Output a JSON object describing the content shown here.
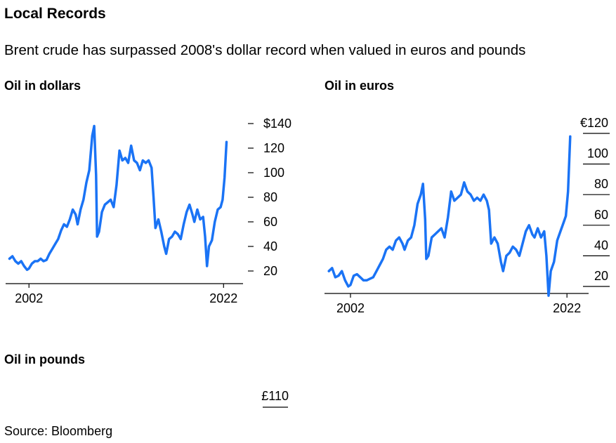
{
  "header": {
    "title": "Local Records",
    "subtitle": "Brent crude has surpassed 2008's dollar record when valued in euros and pounds"
  },
  "footer": {
    "source": "Source: Bloomberg"
  },
  "colors": {
    "line": "#1a73f5",
    "axis": "#000000"
  },
  "chart_data": [
    {
      "type": "line",
      "title": "Oil in dollars",
      "xlabel": "",
      "ylabel": "",
      "xlim": [
        1999.6,
        2024.0
      ],
      "ylim": [
        13,
        143
      ],
      "x_ticks": [
        2002,
        2022
      ],
      "x_tick_labels": [
        "2002",
        "2022"
      ],
      "y_ticks": [
        20,
        40,
        60,
        80,
        100,
        120,
        140
      ],
      "y_tick_labels": [
        "20",
        "40",
        "60",
        "80",
        "100",
        "120",
        "$140"
      ],
      "y_axis_side": "right",
      "grid": false,
      "series": [
        {
          "x": [
            2000.0,
            2000.3,
            2000.6,
            2000.9,
            2001.2,
            2001.5,
            2001.8,
            2002.0,
            2002.3,
            2002.6,
            2002.9,
            2003.2,
            2003.5,
            2003.8,
            2004.1,
            2004.4,
            2004.7,
            2005.0,
            2005.3,
            2005.6,
            2005.9,
            2006.2,
            2006.5,
            2006.8,
            2007.0,
            2007.3,
            2007.6,
            2007.9,
            2008.2,
            2008.5,
            2008.7,
            2008.9,
            2009.0,
            2009.2,
            2009.5,
            2009.8,
            2010.1,
            2010.4,
            2010.7,
            2011.0,
            2011.3,
            2011.6,
            2011.9,
            2012.2,
            2012.5,
            2012.8,
            2013.1,
            2013.4,
            2013.7,
            2014.0,
            2014.3,
            2014.6,
            2014.8,
            2015.0,
            2015.3,
            2015.6,
            2015.9,
            2016.1,
            2016.4,
            2016.7,
            2017.0,
            2017.3,
            2017.6,
            2017.9,
            2018.2,
            2018.5,
            2018.8,
            2019.0,
            2019.3,
            2019.6,
            2019.9,
            2020.1,
            2020.3,
            2020.5,
            2020.8,
            2021.1,
            2021.4,
            2021.7,
            2021.9,
            2022.1,
            2022.3
          ],
          "y": [
            30,
            32,
            28,
            26,
            28,
            24,
            21,
            22,
            26,
            28,
            28,
            30,
            28,
            29,
            34,
            38,
            42,
            46,
            53,
            58,
            56,
            62,
            70,
            66,
            58,
            70,
            78,
            92,
            102,
            130,
            138,
            98,
            48,
            52,
            68,
            74,
            76,
            78,
            72,
            90,
            118,
            110,
            112,
            108,
            122,
            110,
            108,
            102,
            110,
            108,
            110,
            104,
            80,
            55,
            62,
            52,
            40,
            34,
            46,
            48,
            52,
            50,
            46,
            58,
            68,
            74,
            66,
            60,
            70,
            62,
            64,
            48,
            24,
            40,
            45,
            60,
            70,
            72,
            78,
            96,
            125
          ]
        }
      ]
    },
    {
      "type": "line",
      "title": "Oil in euros",
      "xlabel": "",
      "ylabel": "",
      "xlim": [
        1999.6,
        2024.0
      ],
      "ylim": [
        10,
        128
      ],
      "x_ticks": [
        2002,
        2022
      ],
      "x_tick_labels": [
        "2002",
        "2022"
      ],
      "y_ticks": [
        20,
        40,
        60,
        80,
        100,
        120
      ],
      "y_tick_labels": [
        "20",
        "40",
        "60",
        "80",
        "100",
        "€120"
      ],
      "y_axis_side": "right",
      "grid": false,
      "series": [
        {
          "x": [
            2000.0,
            2000.3,
            2000.6,
            2000.9,
            2001.2,
            2001.5,
            2001.8,
            2002.0,
            2002.3,
            2002.6,
            2002.9,
            2003.2,
            2003.5,
            2003.8,
            2004.1,
            2004.4,
            2004.7,
            2005.0,
            2005.3,
            2005.6,
            2005.9,
            2006.2,
            2006.5,
            2006.8,
            2007.0,
            2007.3,
            2007.6,
            2007.9,
            2008.2,
            2008.5,
            2008.7,
            2008.9,
            2009.0,
            2009.2,
            2009.5,
            2009.8,
            2010.1,
            2010.4,
            2010.7,
            2011.0,
            2011.3,
            2011.6,
            2011.9,
            2012.2,
            2012.5,
            2012.8,
            2013.1,
            2013.4,
            2013.7,
            2014.0,
            2014.3,
            2014.6,
            2014.8,
            2015.0,
            2015.3,
            2015.6,
            2015.9,
            2016.1,
            2016.4,
            2016.7,
            2017.0,
            2017.3,
            2017.6,
            2017.9,
            2018.2,
            2018.5,
            2018.8,
            2019.0,
            2019.3,
            2019.6,
            2019.9,
            2020.1,
            2020.3,
            2020.5,
            2020.8,
            2021.1,
            2021.4,
            2021.7,
            2021.9,
            2022.1,
            2022.3
          ],
          "y": [
            30,
            32,
            26,
            27,
            30,
            24,
            20,
            21,
            27,
            28,
            26,
            24,
            24,
            25,
            26,
            30,
            34,
            38,
            44,
            46,
            44,
            50,
            52,
            48,
            44,
            50,
            52,
            60,
            74,
            80,
            87,
            64,
            38,
            40,
            52,
            54,
            56,
            58,
            52,
            65,
            82,
            76,
            78,
            80,
            88,
            82,
            80,
            76,
            78,
            76,
            80,
            76,
            70,
            48,
            52,
            48,
            36,
            30,
            40,
            42,
            46,
            44,
            40,
            48,
            56,
            60,
            54,
            52,
            58,
            52,
            56,
            40,
            14,
            30,
            36,
            50,
            56,
            62,
            66,
            82,
            118
          ]
        }
      ]
    },
    {
      "type": "line",
      "title": "Oil in pounds",
      "xlabel": "",
      "ylabel": "",
      "y_ticks": [
        110
      ],
      "y_tick_labels": [
        "£110"
      ],
      "y_axis_side": "right",
      "grid": false,
      "series": []
    }
  ]
}
